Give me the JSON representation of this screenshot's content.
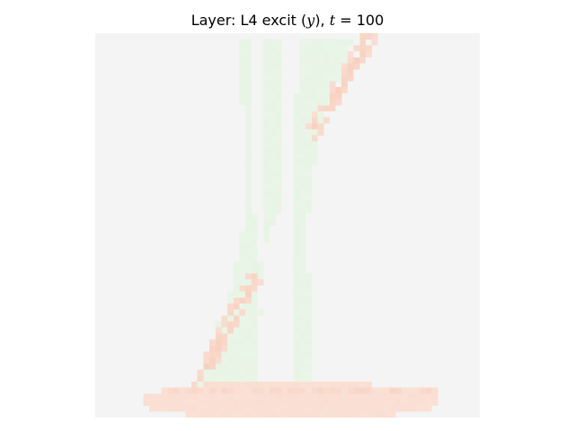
{
  "chart_data": {
    "type": "heatmap",
    "title": {
      "prefix": "Layer: L4 excit (",
      "var": "y",
      "middle": "), ",
      "time_var": "t",
      "equals": " = ",
      "time_value": "100"
    },
    "axes_visible": false,
    "colorbar": false,
    "colormap": {
      "background": "#f4f4f4",
      "positive_low": "#ecf6ea",
      "positive_high": "#dff0db",
      "negative_low": "#fbe6dc",
      "negative_high": "#f6c7b2"
    },
    "grid_size": [
      64,
      64
    ],
    "regions": [
      {
        "name": "left-stroke",
        "value": 0.25,
        "polygon": [
          [
            28.5,
            64
          ],
          [
            28.5,
            1
          ],
          [
            31,
            1
          ],
          [
            31,
            21
          ],
          [
            30.5,
            30
          ],
          [
            28,
            36
          ],
          [
            27,
            40
          ],
          [
            28.5,
            42
          ],
          [
            27,
            48
          ],
          [
            27.5,
            58
          ],
          [
            24,
            60
          ],
          [
            17.5,
            60
          ],
          [
            17,
            58
          ],
          [
            18,
            55
          ],
          [
            19,
            52
          ],
          [
            20.5,
            48
          ],
          [
            22,
            46
          ],
          [
            24,
            35
          ],
          [
            25,
            31
          ],
          [
            25.5,
            28
          ],
          [
            25,
            21
          ],
          [
            24.5,
            12
          ],
          [
            24.5,
            1
          ],
          [
            26,
            1
          ],
          [
            26,
            22
          ]
        ]
      },
      {
        "name": "right-stroke",
        "value": 0.25,
        "polygon": [
          [
            34,
            1
          ],
          [
            43,
            1
          ],
          [
            40,
            9
          ],
          [
            37,
            18
          ],
          [
            36,
            26
          ],
          [
            35.5,
            30
          ],
          [
            35.5,
            40
          ],
          [
            36.5,
            50
          ],
          [
            36.5,
            60
          ],
          [
            34.5,
            61
          ],
          [
            33,
            61
          ],
          [
            33,
            40
          ],
          [
            33,
            20
          ],
          [
            33.5,
            10
          ]
        ]
      },
      {
        "name": "base-stroke",
        "value": -0.2,
        "polygon": [
          [
            8,
            60.5
          ],
          [
            12,
            59
          ],
          [
            20,
            58.3
          ],
          [
            30,
            58
          ],
          [
            40,
            58
          ],
          [
            50,
            58.8
          ],
          [
            55,
            59.5
          ],
          [
            57.5,
            61
          ],
          [
            56,
            62.8
          ],
          [
            50,
            63.5
          ],
          [
            40,
            64
          ],
          [
            28,
            64
          ],
          [
            16,
            63.6
          ],
          [
            9,
            62.5
          ]
        ]
      }
    ],
    "edges": [
      {
        "name": "right-edge-band",
        "value": -0.7,
        "from": [
          45.5,
          1
        ],
        "to": [
          36,
          17
        ],
        "width": 1.4,
        "jitter": 0.45
      },
      {
        "name": "left-edge-band",
        "value": -0.7,
        "from": [
          26.5,
          40.5
        ],
        "to": [
          17.5,
          58
        ],
        "width": 1.4,
        "jitter": 0.45
      },
      {
        "name": "base-top-edge",
        "value": -0.45,
        "from": [
          12,
          59.5
        ],
        "to": [
          56,
          59.5
        ],
        "width": 1.0,
        "jitter": 0.5
      },
      {
        "name": "top-dot",
        "value": -0.6,
        "from": [
          44.5,
          0.5
        ],
        "to": [
          45.5,
          0.5
        ],
        "width": 0.8,
        "jitter": 0.2
      }
    ]
  }
}
